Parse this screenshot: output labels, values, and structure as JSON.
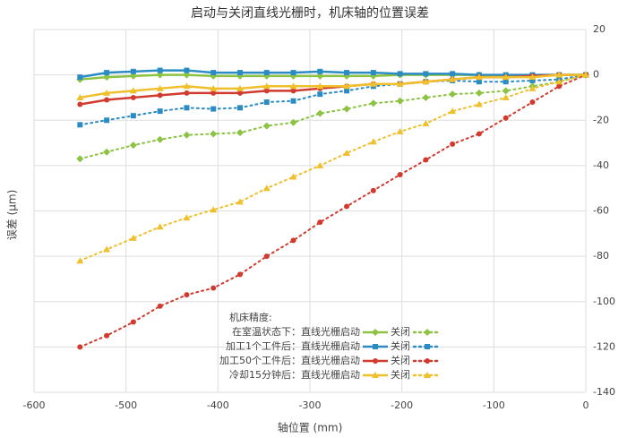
{
  "chart_data": {
    "type": "line",
    "title": "启动与关闭直线光栅时，机床轴的位置误差",
    "x_label": "轴位置 (mm)",
    "y_label": "误差 (μm)",
    "y_axis_side": "right",
    "grid": true,
    "legend_position": "lower center",
    "legend_title": "机床精度:",
    "xlim": [
      -600,
      0
    ],
    "xticks": [
      -600,
      -500,
      -400,
      -300,
      -200,
      -100,
      0
    ],
    "ylim": [
      -140,
      20
    ],
    "yticks": [
      -140,
      -120,
      -100,
      -80,
      -60,
      -40,
      -20,
      0,
      20
    ],
    "x": [
      -550,
      -521,
      -492,
      -463,
      -434,
      -405,
      -376,
      -347,
      -318,
      -289,
      -260,
      -231,
      -202,
      -174,
      -145,
      -116,
      -87,
      -58,
      -29,
      0
    ],
    "series": [
      {
        "name": "在室温状态下：直线光栅启动",
        "color": "#8cc342",
        "marker": "diamond",
        "line_style": "solid",
        "values": [
          -2,
          -1,
          -0.5,
          0,
          0,
          -0.5,
          -0.5,
          -0.5,
          -0.5,
          -0.5,
          -0.5,
          -0.5,
          0,
          0,
          0,
          0,
          -0.5,
          -0.5,
          0,
          0
        ]
      },
      {
        "name": "关闭",
        "color": "#8cc342",
        "marker": "diamond",
        "line_style": "dotted",
        "values": [
          -37,
          -34,
          -31,
          -28.5,
          -26.5,
          -26,
          -25.5,
          -22.5,
          -21,
          -17,
          -15,
          -12.5,
          -11.5,
          -10,
          -8.5,
          -8,
          -7,
          -5,
          -3,
          0
        ]
      },
      {
        "name": "加工1个工件后：直线光栅启动",
        "color": "#2b8cc4",
        "marker": "square",
        "line_style": "solid",
        "values": [
          -1,
          1,
          1.5,
          2,
          2,
          1,
          1,
          1,
          1,
          1.5,
          1,
          1,
          0.5,
          0.5,
          0.5,
          0,
          0,
          0,
          0,
          0
        ]
      },
      {
        "name": "关闭",
        "color": "#2b8cc4",
        "marker": "square",
        "line_style": "dotted",
        "values": [
          -22,
          -20,
          -18,
          -16,
          -14.5,
          -15,
          -14.5,
          -12,
          -11.5,
          -8.5,
          -7,
          -5,
          -4,
          -3,
          -2.5,
          -3,
          -3,
          -2.5,
          -2,
          0
        ]
      },
      {
        "name": "加工50个工件后：直线光栅启动",
        "color": "#d13a2e",
        "marker": "circle",
        "line_style": "solid",
        "values": [
          -13,
          -11,
          -10,
          -9,
          -8,
          -8,
          -8,
          -7,
          -7,
          -6,
          -5,
          -4,
          -4,
          -3,
          -2,
          -1,
          -1,
          -0.5,
          0,
          0
        ]
      },
      {
        "name": "关闭",
        "color": "#d13a2e",
        "marker": "circle",
        "line_style": "dotted",
        "values": [
          -120,
          -115,
          -109,
          -102,
          -97,
          -94,
          -88,
          -80,
          -73,
          -65,
          -58,
          -51,
          -44,
          -37.5,
          -30.5,
          -26,
          -19,
          -12,
          -5,
          0
        ]
      },
      {
        "name": "冷却15分钟后：直线光栅启动",
        "color": "#f0c02c",
        "marker": "triangle",
        "line_style": "solid",
        "values": [
          -10,
          -8,
          -7,
          -6,
          -5,
          -6,
          -6,
          -5,
          -5,
          -5,
          -5,
          -4,
          -4,
          -3,
          -2,
          -1,
          -1,
          -1,
          0,
          0
        ]
      },
      {
        "name": "关闭",
        "color": "#f0c02c",
        "marker": "triangle",
        "line_style": "dotted",
        "values": [
          -82,
          -77,
          -72,
          -67,
          -63,
          -59.5,
          -56,
          -50,
          -45,
          -40,
          -34.5,
          -29.5,
          -25,
          -21.5,
          -16,
          -13,
          -10,
          -6,
          -3,
          0
        ]
      }
    ]
  }
}
